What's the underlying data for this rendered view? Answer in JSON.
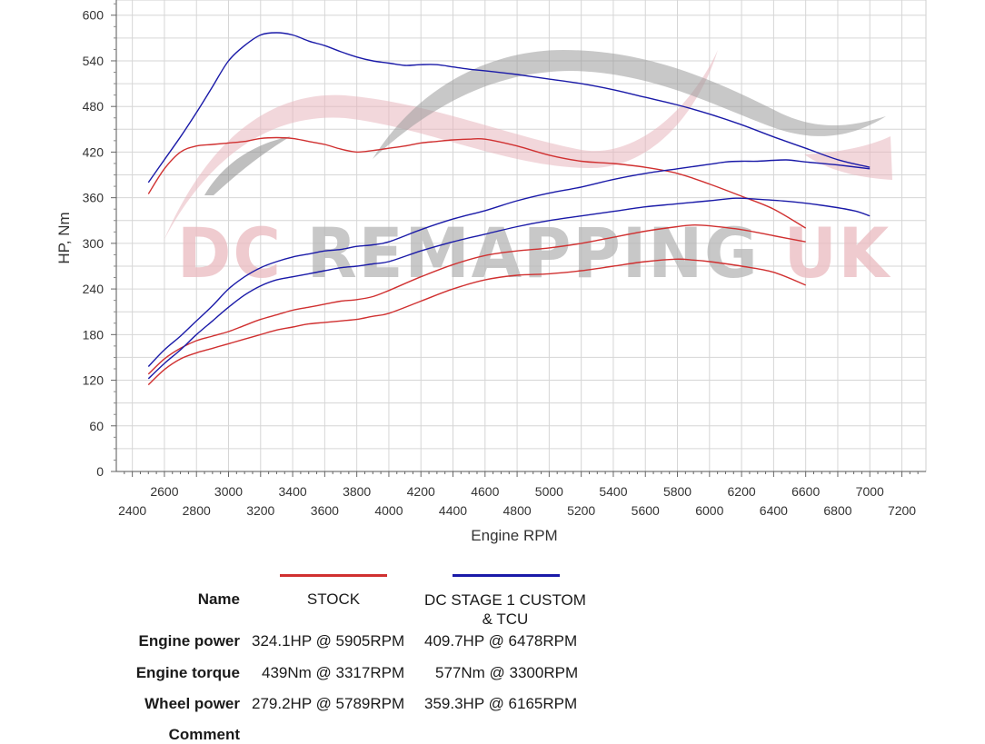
{
  "chart_data": {
    "type": "line",
    "watermark": "DC REMAPPING UK",
    "xlabel": "Engine RPM",
    "ylabel": "HP, Nm",
    "xlim": [
      2300,
      7350
    ],
    "ylim": [
      0,
      620
    ],
    "yticks": [
      0,
      60,
      120,
      180,
      240,
      300,
      360,
      420,
      480,
      540,
      600
    ],
    "xticks_upper": [
      2600,
      3000,
      3400,
      3800,
      4200,
      4600,
      5000,
      5400,
      5800,
      6200,
      6600,
      7000
    ],
    "xticks_lower": [
      2400,
      2800,
      3200,
      3600,
      4000,
      4400,
      4800,
      5200,
      5600,
      6000,
      6400,
      6800,
      7200
    ],
    "series": [
      {
        "name": "DC STAGE 1 CUSTOM & TCU",
        "measure": "torque",
        "color": "#1a1aa8",
        "x": [
          2500,
          2600,
          2700,
          2800,
          2900,
          3000,
          3100,
          3200,
          3300,
          3400,
          3500,
          3600,
          3700,
          3800,
          3900,
          4000,
          4100,
          4200,
          4300,
          4400,
          4500,
          4600,
          4800,
          5000,
          5200,
          5400,
          5600,
          5800,
          6000,
          6200,
          6400,
          6600,
          6800,
          7000
        ],
        "y": [
          380,
          410,
          440,
          472,
          506,
          540,
          560,
          574,
          577,
          574,
          566,
          560,
          552,
          545,
          540,
          537,
          534,
          535,
          535,
          532,
          529,
          527,
          522,
          516,
          510,
          502,
          492,
          482,
          470,
          456,
          440,
          425,
          410,
          400
        ]
      },
      {
        "name": "STOCK",
        "measure": "torque",
        "color": "#d03030",
        "x": [
          2500,
          2600,
          2700,
          2800,
          2900,
          3000,
          3100,
          3200,
          3300,
          3400,
          3500,
          3600,
          3700,
          3800,
          3900,
          4000,
          4100,
          4200,
          4300,
          4400,
          4500,
          4600,
          4800,
          5000,
          5200,
          5400,
          5600,
          5800,
          6000,
          6200,
          6400,
          6600
        ],
        "y": [
          365,
          398,
          420,
          428,
          430,
          432,
          434,
          438,
          439,
          438,
          434,
          430,
          424,
          420,
          422,
          425,
          428,
          432,
          434,
          436,
          437,
          437,
          428,
          416,
          408,
          405,
          400,
          392,
          378,
          362,
          345,
          320
        ]
      },
      {
        "name": "DC STAGE 1 CUSTOM & TCU",
        "measure": "engine power",
        "color": "#1a1aa8",
        "x": [
          2500,
          2600,
          2700,
          2800,
          2900,
          3000,
          3100,
          3200,
          3300,
          3400,
          3500,
          3600,
          3700,
          3800,
          3900,
          4000,
          4200,
          4400,
          4600,
          4800,
          5000,
          5200,
          5400,
          5600,
          5800,
          6000,
          6100,
          6200,
          6300,
          6478,
          6600,
          6800,
          7000
        ],
        "y": [
          138,
          160,
          178,
          198,
          218,
          240,
          256,
          268,
          276,
          282,
          286,
          290,
          292,
          296,
          298,
          302,
          318,
          332,
          343,
          356,
          366,
          374,
          384,
          392,
          398,
          404,
          407,
          408,
          408,
          409.7,
          407,
          403,
          398
        ]
      },
      {
        "name": "STOCK",
        "measure": "engine power",
        "color": "#d03030",
        "x": [
          2500,
          2600,
          2700,
          2800,
          2900,
          3000,
          3100,
          3200,
          3300,
          3400,
          3500,
          3600,
          3700,
          3800,
          3900,
          4000,
          4200,
          4400,
          4600,
          4800,
          5000,
          5200,
          5400,
          5600,
          5800,
          5905,
          6000,
          6200,
          6400,
          6600
        ],
        "y": [
          128,
          148,
          162,
          172,
          178,
          184,
          192,
          200,
          206,
          212,
          216,
          220,
          224,
          226,
          230,
          238,
          256,
          272,
          284,
          290,
          294,
          300,
          308,
          316,
          322,
          324.1,
          323,
          318,
          310,
          302
        ]
      },
      {
        "name": "DC STAGE 1 CUSTOM & TCU",
        "measure": "wheel power",
        "color": "#1a1aa8",
        "x": [
          2500,
          2600,
          2700,
          2800,
          2900,
          3000,
          3100,
          3200,
          3300,
          3400,
          3500,
          3600,
          3700,
          3800,
          3900,
          4000,
          4200,
          4400,
          4600,
          4800,
          5000,
          5200,
          5400,
          5600,
          5800,
          6000,
          6165,
          6300,
          6500,
          6700,
          6900,
          7000
        ],
        "y": [
          122,
          142,
          160,
          180,
          198,
          216,
          232,
          244,
          252,
          256,
          260,
          264,
          268,
          270,
          273,
          276,
          290,
          302,
          312,
          322,
          330,
          336,
          342,
          348,
          352,
          356,
          359.3,
          358,
          355,
          350,
          343,
          336
        ]
      },
      {
        "name": "STOCK",
        "measure": "wheel power",
        "color": "#d03030",
        "x": [
          2500,
          2600,
          2700,
          2800,
          2900,
          3000,
          3100,
          3200,
          3300,
          3400,
          3500,
          3600,
          3700,
          3800,
          3900,
          4000,
          4200,
          4400,
          4600,
          4800,
          5000,
          5200,
          5400,
          5600,
          5789,
          5900,
          6000,
          6200,
          6400,
          6600
        ],
        "y": [
          114,
          134,
          148,
          156,
          162,
          168,
          174,
          180,
          186,
          190,
          194,
          196,
          198,
          200,
          204,
          208,
          224,
          240,
          252,
          258,
          260,
          264,
          270,
          276,
          279.2,
          278,
          276,
          270,
          262,
          245
        ]
      }
    ]
  },
  "legend": {
    "stock_color": "#d03030",
    "stage1_color": "#1a1aa8"
  },
  "table": {
    "headers": {
      "name": "Name",
      "stock": "STOCK",
      "stage1": "DC STAGE 1 CUSTOM\n& TCU"
    },
    "stage1_line1": "DC STAGE 1 CUSTOM",
    "stage1_line2": "& TCU",
    "rows": [
      {
        "label": "Engine power",
        "stock": "324.1HP @  5905RPM",
        "stage1": "409.7HP @  6478RPM"
      },
      {
        "label": "Engine torque",
        "stock": "439Nm @ 3317RPM",
        "stage1": "577Nm @ 3300RPM"
      },
      {
        "label": "Wheel power",
        "stock": "279.2HP @  5789RPM",
        "stage1": "359.3HP @  6165RPM"
      },
      {
        "label": "Comment",
        "stock": "",
        "stage1": ""
      }
    ]
  }
}
